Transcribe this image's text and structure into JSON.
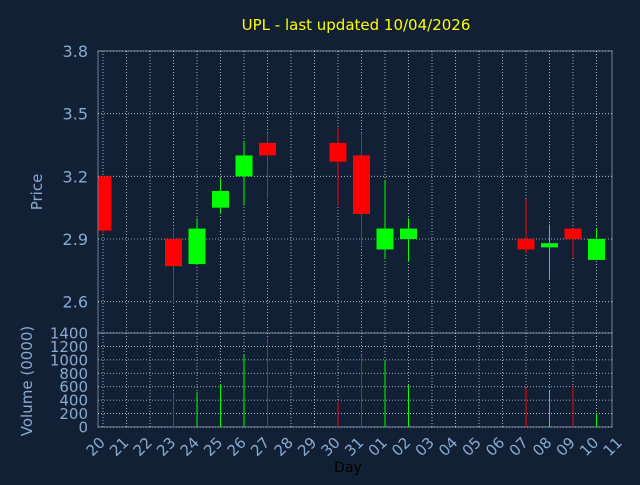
{
  "chart_data": {
    "type": "candlestick",
    "title": "UPL - last updated 10/04/2026",
    "xlabel": "Day",
    "price_axis": {
      "label": "Price",
      "ylim": [
        2.45,
        3.8
      ],
      "ticks": [
        "2.6",
        "2.9",
        "3.2",
        "3.5",
        "3.8"
      ],
      "grid": true
    },
    "volume_axis": {
      "label": "Volume (0000)",
      "ylim": [
        0,
        1400
      ],
      "ticks": [
        "0",
        "200",
        "400",
        "600",
        "800",
        "1000",
        "1200",
        "1400"
      ],
      "grid": true
    },
    "x_tick_labels": [
      "20",
      "21",
      "22",
      "23",
      "24",
      "25",
      "26",
      "27",
      "28",
      "29",
      "30",
      "31",
      "01",
      "02",
      "03",
      "04",
      "05",
      "06",
      "07",
      "08",
      "09",
      "10",
      "11"
    ],
    "colors": {
      "background": "#112034",
      "title": "#ffff00",
      "axis_text": "#8aaad0",
      "grid": "#ffffff",
      "up": "#00ff00",
      "down": "#ff0000"
    },
    "candles": [
      {
        "day": "20",
        "open": 3.2,
        "high": 3.2,
        "low": 2.93,
        "close": 2.94,
        "volume": 0
      },
      {
        "day": "23",
        "open": 2.9,
        "high": 2.95,
        "low": 2.59,
        "close": 2.77,
        "volume": 500
      },
      {
        "day": "24",
        "open": 2.78,
        "high": 3.0,
        "low": 2.78,
        "close": 2.95,
        "volume": 520
      },
      {
        "day": "25",
        "open": 3.05,
        "high": 3.19,
        "low": 3.02,
        "close": 3.13,
        "volume": 630
      },
      {
        "day": "26",
        "open": 3.2,
        "high": 3.37,
        "low": 3.06,
        "close": 3.3,
        "volume": 1080
      },
      {
        "day": "27",
        "open": 3.36,
        "high": 3.41,
        "low": 3.09,
        "close": 3.3,
        "volume": 1320
      },
      {
        "day": "30",
        "open": 3.36,
        "high": 3.43,
        "low": 3.06,
        "close": 3.27,
        "volume": 370
      },
      {
        "day": "31",
        "open": 3.3,
        "high": 3.41,
        "low": 2.87,
        "close": 3.02,
        "volume": 1080
      },
      {
        "day": "01",
        "open": 2.85,
        "high": 3.18,
        "low": 2.81,
        "close": 2.95,
        "volume": 1000
      },
      {
        "day": "02",
        "open": 2.9,
        "high": 3.0,
        "low": 2.79,
        "close": 2.95,
        "volume": 620
      },
      {
        "day": "07",
        "open": 2.9,
        "high": 3.09,
        "low": 2.83,
        "close": 2.85,
        "volume": 580
      },
      {
        "day": "08",
        "open": 2.86,
        "high": 2.97,
        "low": 2.71,
        "close": 2.88,
        "volume": 540
      },
      {
        "day": "09",
        "open": 2.95,
        "high": 2.95,
        "low": 2.81,
        "close": 2.9,
        "volume": 600
      },
      {
        "day": "10",
        "open": 2.8,
        "high": 2.95,
        "low": 2.8,
        "close": 2.9,
        "volume": 200
      }
    ]
  }
}
